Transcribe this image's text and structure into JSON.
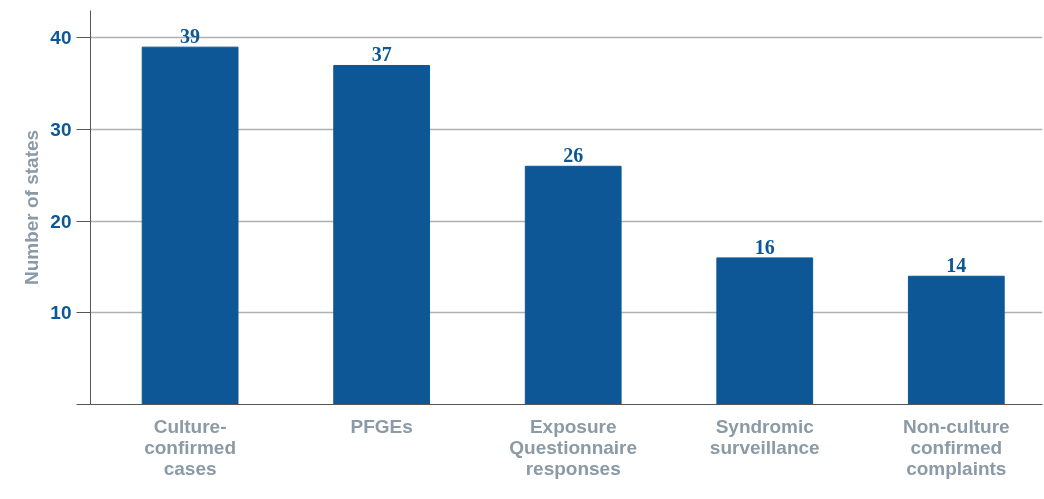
{
  "chart_data": {
    "type": "bar",
    "ylabel": "Number of states",
    "categories": [
      "Culture-\nconfirmed\ncases",
      "PFGEs",
      "Exposure\nQuestionnaire\nresponses",
      "Syndromic\nsurveillance",
      "Non-culture\nconfirmed\ncomplaints"
    ],
    "values": [
      39,
      37,
      26,
      16,
      14
    ],
    "color": "#0d5796",
    "ylim": [
      0,
      43
    ],
    "yticks": [
      {
        "value": 0,
        "label": null
      },
      10,
      20,
      30,
      40
    ],
    "grid": "y",
    "data_labels": true
  }
}
